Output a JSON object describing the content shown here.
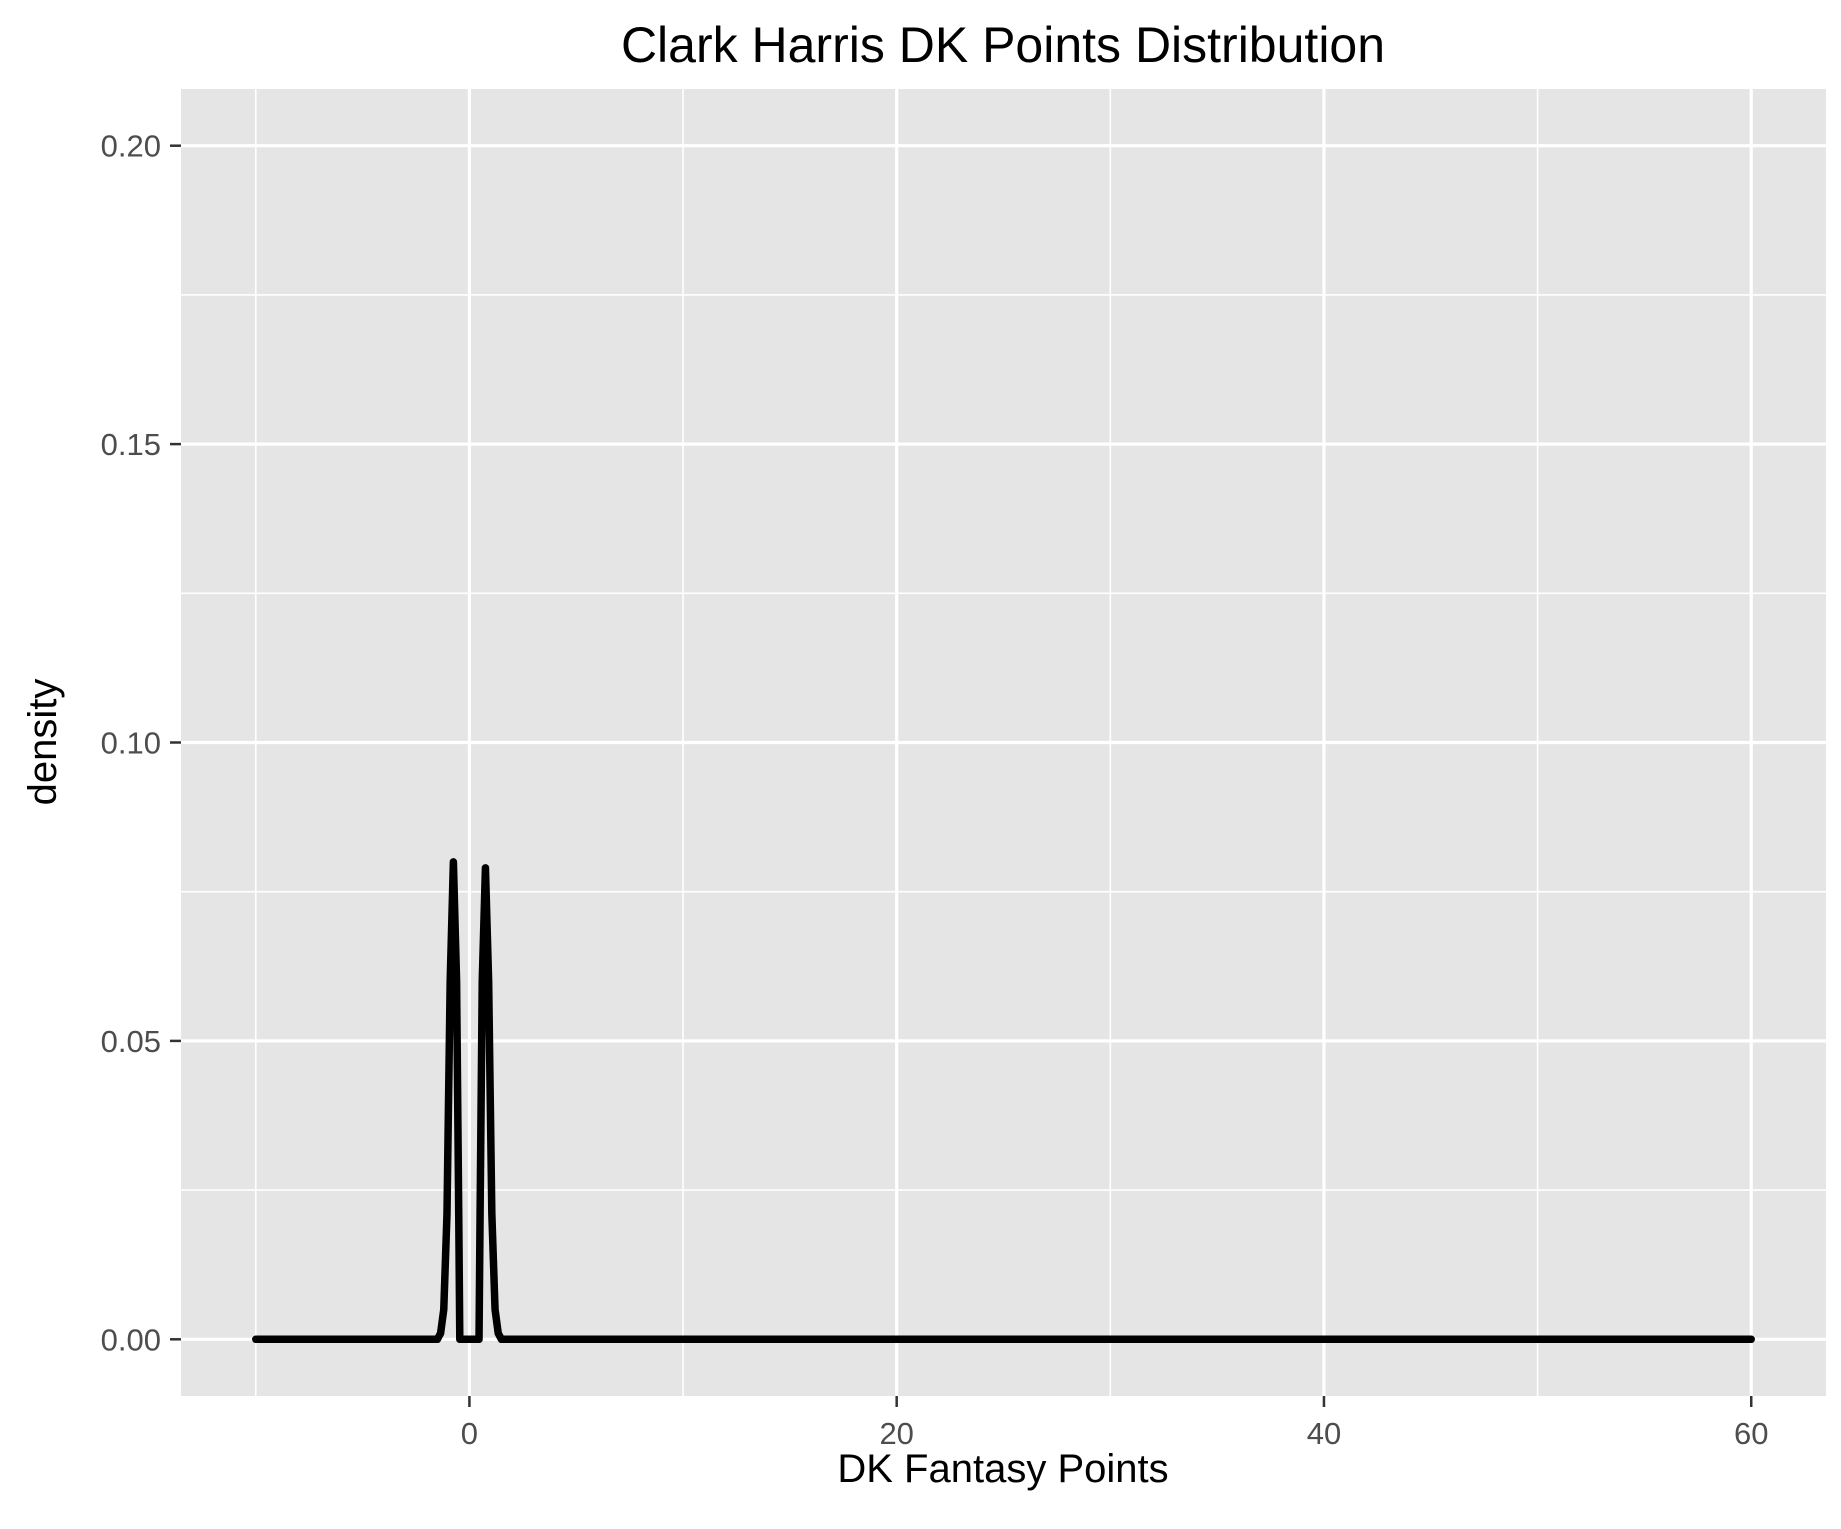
{
  "chart_data": {
    "type": "line",
    "title": "Clark Harris DK Points Distribution",
    "xlabel": "DK Fantasy Points",
    "ylabel": "density",
    "xlim": [
      -13.5,
      63.5
    ],
    "ylim": [
      -0.0095,
      0.2095
    ],
    "x_ticks": [
      0,
      20,
      40,
      60
    ],
    "x_tick_labels": [
      "0",
      "20",
      "40",
      "60"
    ],
    "x_minor_ticks": [
      -10,
      10,
      30,
      50
    ],
    "y_ticks": [
      0.0,
      0.05,
      0.1,
      0.15,
      0.2
    ],
    "y_tick_labels": [
      "0.00",
      "0.05",
      "0.10",
      "0.15",
      "0.20"
    ],
    "y_minor_ticks": [
      0.025,
      0.075,
      0.125,
      0.175
    ],
    "grid": true,
    "legend": "none",
    "colors": {
      "panel_background": "#e5e5e5",
      "grid_line": "#ffffff",
      "line": "#000000",
      "tick_label": "#4d4d4d"
    },
    "series": [
      {
        "x": [
          -10,
          -1.5,
          -1.35,
          -1.2,
          -1.05,
          -0.9,
          -0.75,
          -0.6,
          -0.5,
          -0.45,
          0.45,
          0.5,
          0.6,
          0.75,
          0.9,
          1.05,
          1.2,
          1.35,
          1.5,
          60
        ],
        "y": [
          0,
          0,
          0.001,
          0.005,
          0.021,
          0.06,
          0.08,
          0.06,
          0.021,
          0,
          0,
          0.021,
          0.06,
          0.079,
          0.06,
          0.021,
          0.005,
          0.001,
          0,
          0
        ]
      }
    ]
  }
}
